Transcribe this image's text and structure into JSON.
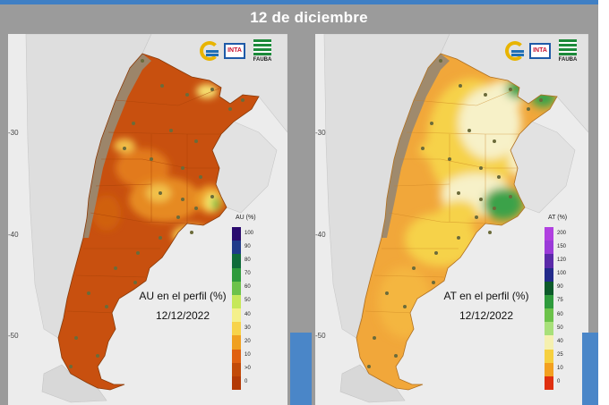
{
  "header": {
    "date_title": "12 de diciembre"
  },
  "logos": {
    "inta": "INTA",
    "fauba": "FAUBA"
  },
  "axes": {
    "lat_ticks": [
      "-30",
      "-40",
      "-50"
    ]
  },
  "maps": {
    "au": {
      "label": "AU en el perfil (%)",
      "date": "12/12/2022",
      "legend": {
        "title": "AU (%)",
        "ticks": [
          "100",
          "90",
          "80",
          "70",
          "60",
          "50",
          "40",
          "30",
          "20",
          "10",
          ">0",
          "0"
        ],
        "colors": [
          "#2a0a6e",
          "#1f3a8a",
          "#0f6b3a",
          "#2e9a3c",
          "#6cc24a",
          "#c6e85a",
          "#f4f08a",
          "#f7d34a",
          "#f0a020",
          "#e06010",
          "#c24a08",
          "#b33a06"
        ]
      }
    },
    "at": {
      "label": "AT en el perfil (%)",
      "date": "12/12/2022",
      "legend": {
        "title": "AT (%)",
        "ticks": [
          "200",
          "150",
          "120",
          "100",
          "90",
          "75",
          "60",
          "50",
          "40",
          "25",
          "10",
          "0"
        ],
        "colors": [
          "#b040e0",
          "#9a3ad8",
          "#5a2aa8",
          "#222a8a",
          "#0c5a2a",
          "#2e9a3c",
          "#6cc24a",
          "#a8e07a",
          "#f5f0b0",
          "#f6d040",
          "#f3a020",
          "#e03010"
        ]
      }
    }
  },
  "colors": {
    "au_dry": "#c8500f",
    "au_mid": "#e27a1c",
    "au_light": "#f2c04a",
    "at_base": "#f1a73a",
    "at_yellow": "#f6d24a",
    "at_cream": "#f7f1c8",
    "at_green": "#3aa24a",
    "andes": "#9a8870",
    "neighbors": "#dcdcdc",
    "station": "#6b6b3a"
  }
}
